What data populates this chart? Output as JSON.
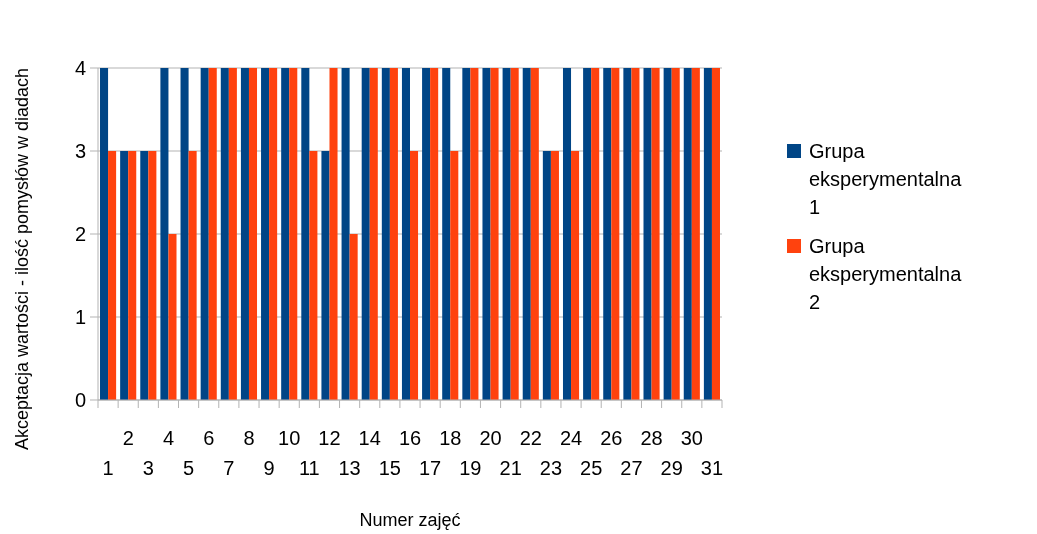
{
  "chart_data": {
    "type": "bar",
    "xlabel": "Numer zajęć",
    "ylabel": "Akceptacja wartości - ilość pomysłów w diadach",
    "categories": [
      "1",
      "2",
      "3",
      "4",
      "5",
      "6",
      "7",
      "8",
      "9",
      "10",
      "11",
      "12",
      "13",
      "14",
      "15",
      "16",
      "17",
      "18",
      "19",
      "20",
      "21",
      "22",
      "23",
      "24",
      "25",
      "26",
      "27",
      "28",
      "29",
      "30",
      "31"
    ],
    "series": [
      {
        "name": "Grupa eksperymentalna 1",
        "color": "#004586",
        "values": [
          4,
          3,
          3,
          4,
          4,
          4,
          4,
          4,
          4,
          4,
          4,
          3,
          4,
          4,
          4,
          4,
          4,
          4,
          4,
          4,
          4,
          4,
          3,
          4,
          4,
          4,
          4,
          4,
          4,
          4,
          4
        ]
      },
      {
        "name": "Grupa eksperymentalna 2",
        "color": "#ff420e",
        "values": [
          3,
          3,
          3,
          2,
          3,
          4,
          4,
          4,
          4,
          4,
          3,
          4,
          2,
          4,
          4,
          3,
          4,
          3,
          4,
          4,
          4,
          4,
          3,
          3,
          4,
          4,
          4,
          4,
          4,
          4,
          4
        ]
      }
    ],
    "ylim": [
      0,
      4
    ],
    "yticks": [
      0,
      1,
      2,
      3,
      4
    ],
    "grid": "y",
    "legend": "right"
  }
}
